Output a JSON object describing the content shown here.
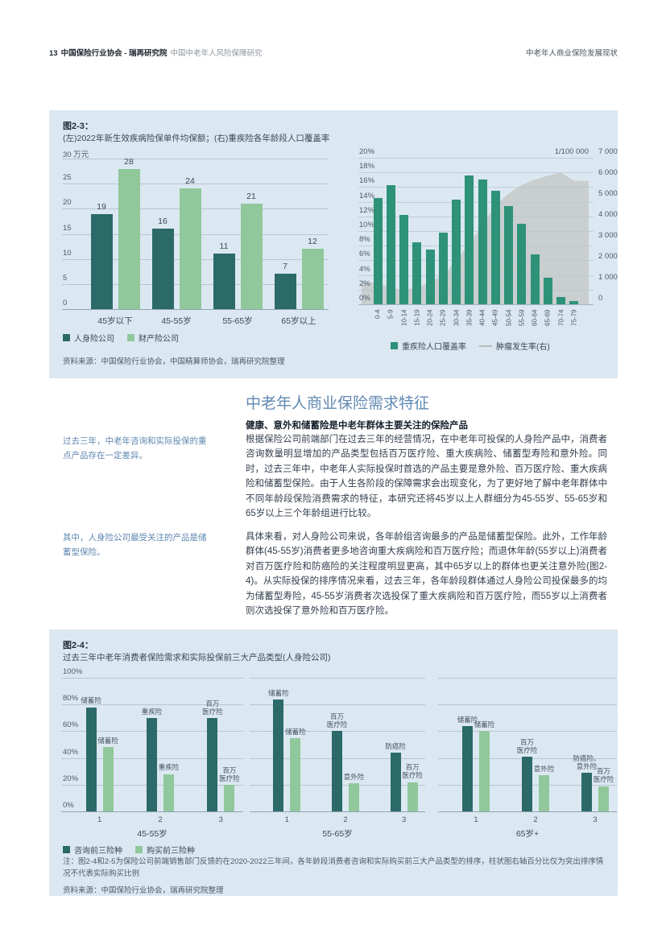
{
  "page": {
    "header": {
      "page_number": "13",
      "org": "中国保险行业协会 - 瑞再研究院",
      "doc_title": "中国中老年人风险保障研究",
      "section_title": "中老年人商业保险发展现状"
    }
  },
  "colors": {
    "figure_bg": "#dce8f1",
    "dark_teal": "#2c6969",
    "light_green": "#90c89c",
    "teal": "#2e9278",
    "gray_area": "#c9cecf",
    "heading_blue": "#6189b2"
  },
  "figure23": {
    "label": "图2-3：",
    "title": "(左)2022年新生效疾病险保单件均保额；(右)重疾险各年龄段人口覆盖率",
    "source": "资料来源：中国保险行业协会，中国精算师协会，瑞再研究院整理"
  },
  "section": {
    "heading": "中老年人商业保险需求特征",
    "subheading": "健康、意外和储蓄险是中老年群体主要关注的保险产品",
    "margin_note1": "过去三年，中老年咨询和实际投保的重点产品存在一定差异。",
    "margin_note2": "其中，人身险公司最受关注的产品是储蓄型保险。",
    "para1": "根据保险公司前端部门在过去三年的经营情况，在中老年可投保的人身险产品中，消费者咨询数量明显增加的产品类型包括百万医疗险、重大疾病险、储蓄型寿险和意外险。同时，过去三年中，中老年人实际投保时首选的产品主要是意外险、百万医疗险、重大疾病险和储蓄型保险。由于人生各阶段的保障需求会出现变化，为了更好地了解中老年群体中不同年龄段保险消费需求的特征，本研究还将45岁以上人群细分为45-55岁、55-65岁和65岁以上三个年龄组进行比较。",
    "para2": "具体来看，对人身险公司来说，各年龄组咨询最多的产品是储蓄型保险。此外，工作年龄群体(45-55岁)消费者更多地咨询重大疾病险和百万医疗险；而退休年龄(55岁以上)消费者对百万医疗险和防癌险的关注程度明显更高，其中65岁以上的群体也更关注意外险(图2-4)。从实际投保的排序情况来看，过去三年，各年龄段群体通过人身险公司投保最多的均为储蓄型寿险，45-55岁消费者次选投保了重大疾病险和百万医疗险，而55岁以上消费者则次选投保了意外险和百万医疗险。"
  },
  "figure24": {
    "label": "图2-4：",
    "title": "过去三年中老年消费者保险需求和实际投保前三大产品类型(人身险公司)",
    "note": "注：图2-4和2-5为保险公司前端销售部门反馈的在2020-2022三年间，各年龄段消费者咨询和实际购买前三大产品类型的排序，柱状图右轴百分比仅为突出排序情况不代表实际购买比例",
    "source": "资料来源：中国保险行业协会，瑞再研究院整理"
  },
  "chart_data": [
    {
      "id": "fig23_left",
      "type": "bar",
      "title": "(左)2022年新生效疾病险保单件均保额",
      "unit": "万元",
      "categories": [
        "45岁以下",
        "45-55岁",
        "55-65岁",
        "65岁以上"
      ],
      "series": [
        {
          "name": "人身险公司",
          "color": "#2c6969",
          "values": [
            19,
            16,
            11,
            7
          ]
        },
        {
          "name": "财产险公司",
          "color": "#90c89c",
          "values": [
            28,
            24,
            21,
            12
          ]
        }
      ],
      "ylim": [
        0,
        30
      ],
      "yticks": [
        0,
        5,
        10,
        15,
        20,
        25,
        30
      ],
      "grid": true,
      "legend_position": "bottom"
    },
    {
      "id": "fig23_right",
      "type": "bar+area",
      "title": "(右)重疾险各年龄段人口覆盖率",
      "categories": [
        "0-4",
        "5-9",
        "10-14",
        "15-19",
        "20-24",
        "25-29",
        "30-34",
        "35-39",
        "40-44",
        "45-49",
        "50-54",
        "55-59",
        "60-64",
        "65-69",
        "70-74",
        "75-79"
      ],
      "bar_series": {
        "name": "重疾险人口覆盖率",
        "color": "#2e9278",
        "yaxis": "left",
        "values": [
          14.5,
          16.3,
          12.2,
          8.5,
          7.5,
          9.8,
          14.3,
          17.6,
          17.0,
          15.5,
          13.4,
          11.0,
          6.8,
          3.6,
          1.0,
          0.4
        ]
      },
      "area_series": {
        "name": "肿瘤发生率(右)",
        "color": "#c9cecf",
        "yaxis": "right",
        "values": [
          1050,
          750,
          700,
          800,
          1050,
          1400,
          2100,
          2900,
          3800,
          4700,
          5300,
          5700,
          5950,
          6150,
          6300,
          5900
        ]
      },
      "left_axis": {
        "lim": [
          0,
          20
        ],
        "ticks": [
          "0%",
          "2%",
          "4%",
          "6%",
          "8%",
          "10%",
          "12%",
          "14%",
          "16%",
          "18%",
          "20%"
        ]
      },
      "right_axis": {
        "lim": [
          0,
          7000
        ],
        "ticks": [
          "0",
          "1 000",
          "2 000",
          "3 000",
          "4 000",
          "5 000",
          "6 000",
          "7 000"
        ],
        "unit_label": "1/100 000"
      },
      "grid": true
    },
    {
      "id": "fig24",
      "type": "grouped_bar_panels",
      "ylim": [
        0,
        100
      ],
      "yticks": [
        "0%",
        "20%",
        "40%",
        "60%",
        "80%",
        "100%"
      ],
      "series_names": [
        "咨询前三险种",
        "购买前三险种"
      ],
      "series_colors": [
        "#2c6969",
        "#90c89c"
      ],
      "panels": [
        {
          "age_group": "45-55岁",
          "x_ticks": [
            "1",
            "2",
            "3"
          ],
          "consult": {
            "values": [
              78,
              70,
              70
            ],
            "labels": [
              "储蓄险",
              "重疾险",
              "百万\n医疗险"
            ]
          },
          "purchase": {
            "values": [
              48,
              28,
              20
            ],
            "labels": [
              "储蓄险",
              "重疾险",
              "百万\n医疗险"
            ]
          }
        },
        {
          "age_group": "55-65岁",
          "x_ticks": [
            "1",
            "2",
            "3"
          ],
          "consult": {
            "values": [
              84,
              60,
              44
            ],
            "labels": [
              "储蓄险",
              "百万\n医疗险",
              "防癌险"
            ]
          },
          "purchase": {
            "values": [
              55,
              21,
              22
            ],
            "labels": [
              "储蓄险",
              "意外险",
              "百万\n医疗险"
            ]
          }
        },
        {
          "age_group": "65岁+",
          "x_ticks": [
            "1",
            "2",
            "3"
          ],
          "consult": {
            "values": [
              64,
              41,
              29
            ],
            "labels": [
              "储蓄险",
              "百万\n医疗险",
              "防癌险、\n意外险"
            ]
          },
          "purchase": {
            "values": [
              60,
              27,
              19
            ],
            "labels": [
              "储蓄险",
              "意外险",
              "百万\n医疗险"
            ]
          }
        }
      ],
      "legend": [
        "咨询前三险种",
        "购买前三险种"
      ]
    }
  ]
}
